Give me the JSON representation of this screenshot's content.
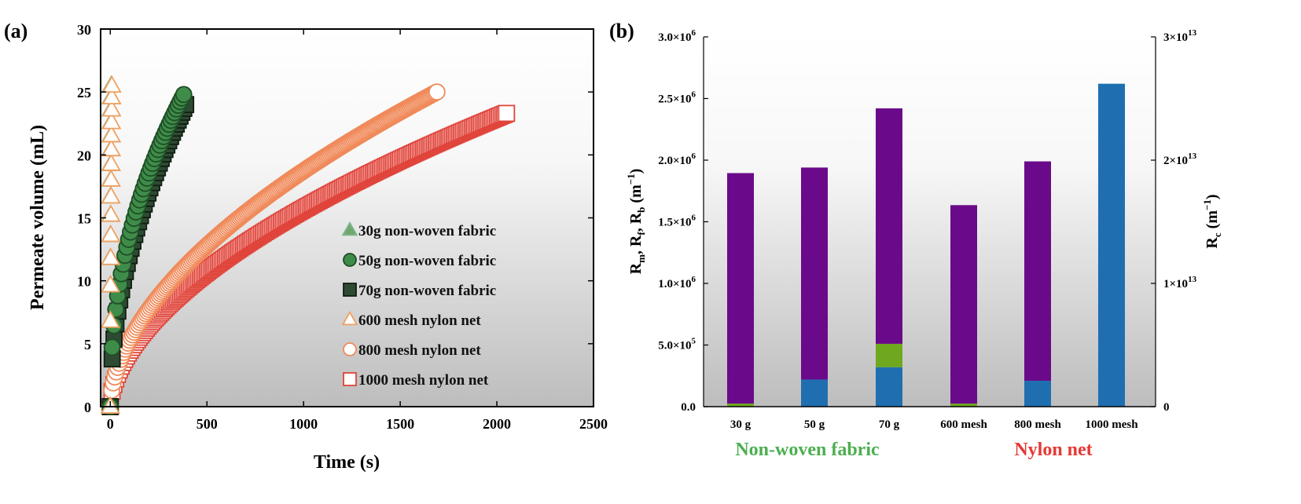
{
  "chart_data": [
    {
      "panel_label": "(a)",
      "type": "scatter",
      "xlabel": "Time (s)",
      "ylabel": "Permeate volume (mL)",
      "xlim": [
        -50,
        2500
      ],
      "ylim": [
        0,
        30
      ],
      "xticks": [
        0,
        500,
        1000,
        1500,
        2000,
        2500
      ],
      "yticks": [
        0,
        5,
        10,
        15,
        20,
        25,
        30
      ],
      "legend_position": "bottom-right",
      "series": [
        {
          "name": "30g non-woven fabric",
          "marker": "triangle",
          "filled": true,
          "color": "#6fa86f",
          "edge": "#7fb58a",
          "t_end": 5,
          "v_end": 25.5,
          "exp": 0.5,
          "n": 14
        },
        {
          "name": "50g non-woven fabric",
          "marker": "circle",
          "filled": true,
          "color": "#3f8c4a",
          "edge": "#1f4d25",
          "t_end": 380,
          "v_end": 24.8,
          "exp": 0.45,
          "n": 40
        },
        {
          "name": "70g non-woven fabric",
          "marker": "square",
          "filled": true,
          "color": "#2f4a33",
          "edge": "#0f1f12",
          "t_end": 390,
          "v_end": 24.0,
          "exp": 0.5,
          "n": 40
        },
        {
          "name": "600 mesh nylon net",
          "marker": "triangle",
          "filled": false,
          "color": "#ffffff",
          "edge": "#f0a060",
          "t_end": 8,
          "v_end": 25.5,
          "exp": 0.5,
          "n": 14
        },
        {
          "name": "800 mesh nylon net",
          "marker": "circle",
          "filled": false,
          "color": "#ffffff",
          "edge": "#f08a5a",
          "t_end": 1690,
          "v_end": 25.0,
          "exp": 0.55,
          "n": 220
        },
        {
          "name": "1000 mesh nylon net",
          "marker": "square",
          "filled": false,
          "color": "#ffffff",
          "edge": "#e0443a",
          "t_end": 2050,
          "v_end": 23.3,
          "exp": 0.55,
          "n": 220
        }
      ]
    },
    {
      "panel_label": "(b)",
      "type": "bar",
      "stacked": true,
      "categories": [
        "30 g",
        "50 g",
        "70 g",
        "600 mesh",
        "800 mesh",
        "1000 mesh"
      ],
      "ylabel_left": "R_m, R_f, R_b (m^-1)",
      "ylabel_right": "R_c (m^-1)",
      "ylim_left": [
        0,
        3000000
      ],
      "ylim_right": [
        0,
        30000000000000
      ],
      "left_tick_labels": [
        "0.0",
        "5.0×10",
        "1.0×10",
        "1.5×10",
        "2.0×10",
        "2.5×10",
        "3.0×10"
      ],
      "left_tick_exponents": [
        "",
        "5",
        "6",
        "6",
        "6",
        "6",
        "6"
      ],
      "right_tick_labels": [
        "0",
        "1×10",
        "2×10",
        "3×10"
      ],
      "right_tick_exponents": [
        "",
        "13",
        "13",
        "13"
      ],
      "series": [
        {
          "name": "blue component",
          "color": "#1f6fb0",
          "values": [
            0,
            220000,
            320000,
            0,
            210000,
            2620000
          ]
        },
        {
          "name": "green component",
          "color": "#6fa81f",
          "values": [
            25000,
            0,
            190000,
            25000,
            0,
            0
          ]
        },
        {
          "name": "purple component",
          "color": "#6a0a8a",
          "values": [
            1870000,
            1720000,
            1910000,
            1610000,
            1780000,
            0
          ]
        }
      ],
      "group_labels": [
        {
          "text": "Non-woven fabric",
          "color": "#4caf50"
        },
        {
          "text": "Nylon net",
          "color": "#e53935"
        }
      ]
    }
  ]
}
